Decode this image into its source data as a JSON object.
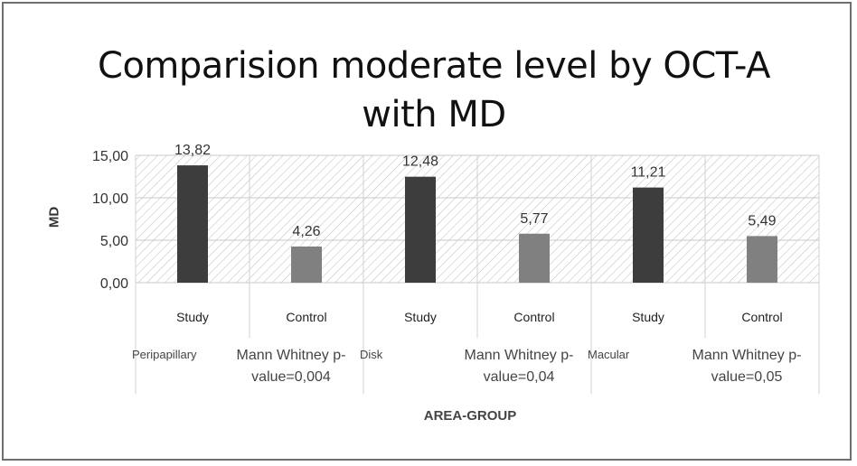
{
  "chart_data": {
    "type": "bar",
    "title": "Comparision moderate level by OCT-A with MD",
    "ylabel": "MD",
    "xlabel": "AREA-GROUP",
    "ylim": [
      0,
      15
    ],
    "yticks": [
      "0,00",
      "5,00",
      "10,00",
      "15,00"
    ],
    "grid": true,
    "groups": [
      {
        "area": "Peripapillary",
        "test": "Mann Whitney p-value=0,004",
        "bars": [
          {
            "group": "Study",
            "value": 13.82,
            "label": "13,82"
          },
          {
            "group": "Control",
            "value": 4.26,
            "label": "4,26"
          }
        ]
      },
      {
        "area": "Disk",
        "test": "Mann Whitney p-value=0,04",
        "bars": [
          {
            "group": "Study",
            "value": 12.48,
            "label": "12,48"
          },
          {
            "group": "Control",
            "value": 5.77,
            "label": "5,77"
          }
        ]
      },
      {
        "area": "Macular",
        "test": "Mann Whitney p-value=0,05",
        "bars": [
          {
            "group": "Study",
            "value": 11.21,
            "label": "11,21"
          },
          {
            "group": "Control",
            "value": 5.49,
            "label": "5,49"
          }
        ]
      }
    ],
    "colors": {
      "Study": "#3d3d3d",
      "Control": "#808080",
      "hatch": "#bdbdbd"
    }
  }
}
